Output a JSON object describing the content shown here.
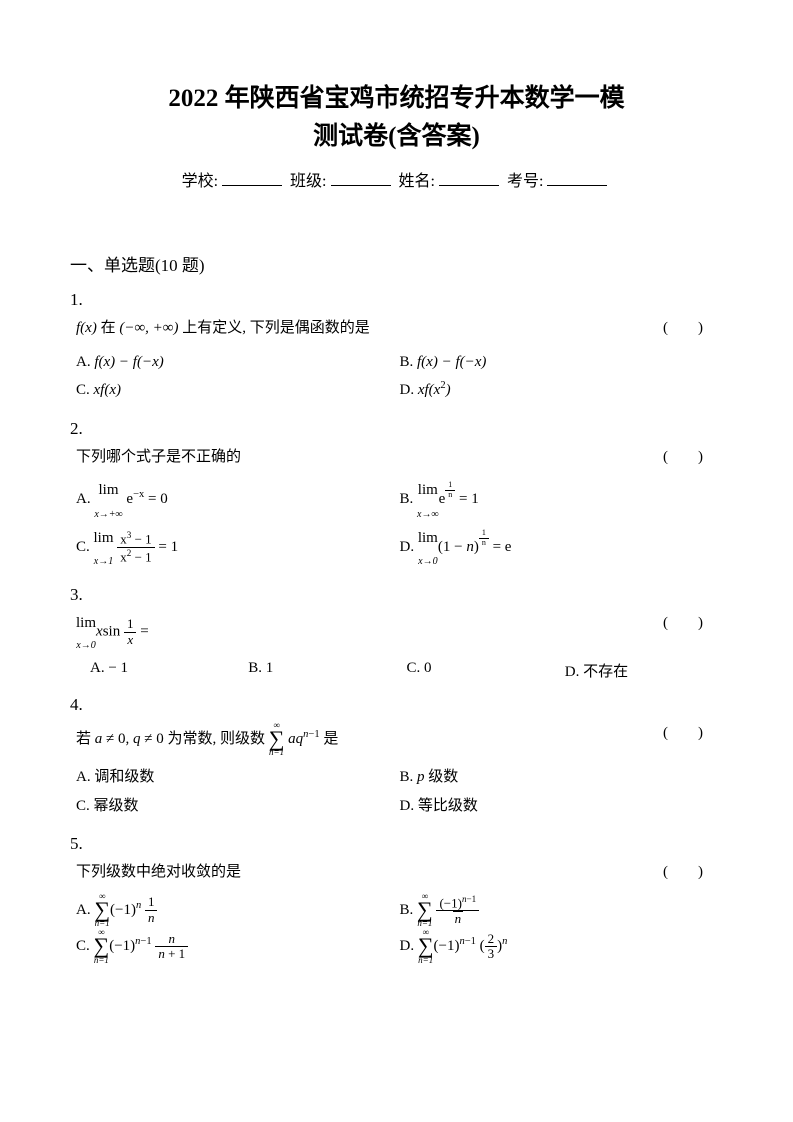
{
  "title_line1": "2022 年陕西省宝鸡市统招专升本数学一模",
  "title_line2": "测试卷(含答案)",
  "info": {
    "school": "学校:",
    "class": "班级:",
    "name": "姓名:",
    "exam_no": "考号:"
  },
  "section": "一、单选题(10 题)",
  "questions": [
    {
      "num": "1.",
      "stem_html": "<span class='math'>f(x)</span> 在 <span class='math'>(−∞, +∞)</span> 上有定义, 下列是偶函数的是",
      "paren": "(　　)",
      "choices": [
        "A. <span class='math'>f(x) − f(−x)</span>",
        "B. <span class='math'>f(x) − f(−x)</span>",
        "C. <span class='math'>xf(x)</span>",
        "D. <span class='math'>xf(x<sup>2</sup>)</span>"
      ],
      "layout": "2col"
    },
    {
      "num": "2.",
      "stem_html": "下列哪个式子是不正确的",
      "paren": "(　　)",
      "choices": [
        "A. <span class='lim'><span class='top'>lim</span><span class='bot'>x→+∞</span></span> e<sup>−x</sup> = 0",
        "B. <span class='lim'><span class='top'>lim</span><span class='bot'>x→∞</span></span>e<sup><span class='frac' style='vertical-align:baseline'><span class='num' style='font-size:8px'>1</span><span class='den' style='font-size:8px'>n</span></span></sup> = 1",
        "C. <span class='lim'><span class='top'>lim</span><span class='bot'>x→1</span></span> <span class='frac'><span class='num'>x<sup>3</sup> − 1</span><span class='den'>x<sup>2</sup> − 1</span></span> = 1",
        "D. <span class='lim'><span class='top'>lim</span><span class='bot'>x→0</span></span>(1 − <span class='math'>n</span>)<sup><span class='frac' style='vertical-align:baseline'><span class='num' style='font-size:8px'>1</span><span class='den' style='font-size:8px'>n</span></span></sup> = e"
      ],
      "layout": "2col"
    },
    {
      "num": "3.",
      "stem_html": "<span class='lim'><span class='top'>lim</span><span class='bot'>x→0</span></span><span class='math'>x</span>sin <span class='frac'><span class='num'>1</span><span class='den'><span class='math'>x</span></span></span> =",
      "paren": "(　　)",
      "choices": [
        "A. − 1",
        "B. 1",
        "C. 0",
        "D. 不存在"
      ],
      "layout": "4col"
    },
    {
      "num": "4.",
      "stem_html": "若 <span class='math'>a</span> ≠ 0, <span class='math'>q</span> ≠ 0 为常数, 则级数 <span class='sum'><span class='top'>∞</span><span class='sig'>∑</span><span class='bot'>n=1</span></span> <span class='math'>aq</span><sup><span class='math'>n</span>−1</sup> 是",
      "paren": "(　　)",
      "choices": [
        "A. 调和级数",
        "B. <span class='math'>p</span> 级数",
        "C. 幂级数",
        "D. 等比级数"
      ],
      "layout": "2col"
    },
    {
      "num": "5.",
      "stem_html": "下列级数中绝对收敛的是",
      "paren": "(　　)",
      "choices": [
        "A. <span class='sum'><span class='top'>∞</span><span class='sig'>∑</span><span class='bot'>n=1</span></span>(−1)<sup><span class='math'>n</span></sup> <span class='frac'><span class='num'>1</span><span class='den'><span class='math'>n</span></span></span>",
        "B. <span class='sum'><span class='top'>∞</span><span class='sig'>∑</span><span class='bot'>n=1</span></span> <span class='frac'><span class='num'>(−1)<sup><span class='math'>n</span>−1</sup></span><span class='den'><span class='sqrt'><span class='math'>n</span></span></span></span>",
        "C. <span class='sum'><span class='top'>∞</span><span class='sig'>∑</span><span class='bot'>n=1</span></span>(−1)<sup><span class='math'>n</span>−1</sup> <span class='frac'><span class='num'><span class='math'>n</span></span><span class='den'><span class='math'>n</span> + 1</span></span>",
        "D. <span class='sum'><span class='top'>∞</span><span class='sig'>∑</span><span class='bot'>n=1</span></span>(−1)<sup><span class='math'>n</span>−1</sup> (<span class='frac'><span class='num'>2</span><span class='den'>3</span></span>)<sup><span class='math'>n</span></sup>"
      ],
      "layout": "2col"
    }
  ]
}
